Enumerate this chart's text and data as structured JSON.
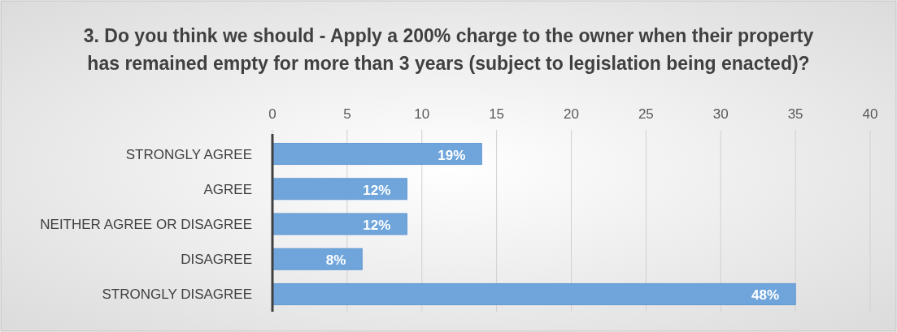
{
  "chart_data": {
    "type": "bar",
    "orientation": "horizontal",
    "title": "3. Do you think we should  - Apply a 200% charge to the owner when their property has remained empty for more than 3 years (subject to legislation being enacted)?",
    "categories": [
      "STRONGLY AGREE",
      "AGREE",
      "NEITHER AGREE OR DISAGREE",
      "DISAGREE",
      "STRONGLY DISAGREE"
    ],
    "values": [
      14,
      9,
      9,
      6,
      35
    ],
    "annotations": [
      {
        "text": "19%",
        "x": 14,
        "y": "STRONGLY AGREE"
      },
      {
        "text": "12%",
        "x": 9,
        "y": "AGREE"
      },
      {
        "text": "12%",
        "x": 9,
        "y": "NEITHER AGREE OR DISAGREE"
      },
      {
        "text": "8%",
        "x": 6,
        "y": "DISAGREE"
      },
      {
        "text": "48%",
        "x": 35,
        "y": "STRONGLY DISAGREE"
      }
    ],
    "color": "#6fa5db",
    "xlim": [
      0,
      40
    ],
    "xticks": [
      0,
      5,
      10,
      15,
      20,
      25,
      30,
      35,
      40
    ],
    "grid": "x"
  }
}
